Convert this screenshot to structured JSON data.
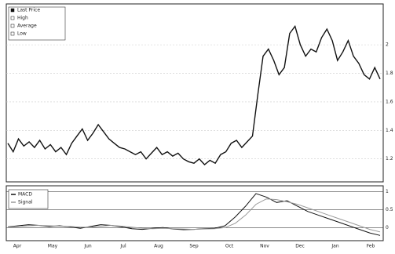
{
  "chart_data": [
    {
      "type": "line",
      "legend": "top-left",
      "grid": true,
      "legend_entries": [
        "Last Price",
        "High",
        "Average",
        "Low"
      ],
      "ylim": [
        1.05,
        2.27
      ],
      "yticks": [
        1.2,
        1.4,
        1.6,
        1.8,
        2.0
      ],
      "months": [
        "Apr",
        "May",
        "Jun",
        "Jul",
        "Aug",
        "Sep",
        "Oct",
        "Nov",
        "Dec",
        "Jan",
        "Feb"
      ],
      "series": [
        {
          "name": "Last Price",
          "color": "#111111",
          "values": [
            1.31,
            1.25,
            1.34,
            1.29,
            1.32,
            1.28,
            1.33,
            1.27,
            1.3,
            1.25,
            1.28,
            1.23,
            1.31,
            1.36,
            1.41,
            1.33,
            1.38,
            1.44,
            1.39,
            1.34,
            1.31,
            1.28,
            1.27,
            1.25,
            1.23,
            1.25,
            1.2,
            1.24,
            1.28,
            1.23,
            1.25,
            1.22,
            1.24,
            1.2,
            1.18,
            1.17,
            1.2,
            1.16,
            1.19,
            1.17,
            1.23,
            1.25,
            1.31,
            1.33,
            1.28,
            1.32,
            1.36,
            1.65,
            1.92,
            1.97,
            1.89,
            1.79,
            1.84,
            2.08,
            2.13,
            2.0,
            1.92,
            1.97,
            1.95,
            2.05,
            2.11,
            2.03,
            1.89,
            1.95,
            2.03,
            1.92,
            1.87,
            1.79,
            1.76,
            1.84,
            1.76
          ]
        }
      ]
    },
    {
      "type": "line",
      "legend": "top-left",
      "grid": true,
      "ylim": [
        -0.3,
        1.1
      ],
      "yticks": [
        0,
        0.5,
        1
      ],
      "series": [
        {
          "name": "MACD",
          "color": "#111111",
          "values": [
            0.02,
            0.05,
            0.08,
            0.06,
            0.03,
            0.05,
            0.02,
            -0.02,
            0.03,
            0.08,
            0.06,
            0.02,
            -0.03,
            -0.05,
            -0.02,
            0.0,
            -0.04,
            -0.06,
            -0.05,
            -0.03,
            -0.02,
            0.05,
            0.3,
            0.6,
            0.95,
            0.85,
            0.7,
            0.75,
            0.6,
            0.45,
            0.35,
            0.25,
            0.15,
            0.05,
            -0.05,
            -0.15,
            -0.22
          ]
        },
        {
          "name": "Signal",
          "color": "#999999",
          "values": [
            0.01,
            0.03,
            0.05,
            0.06,
            0.05,
            0.04,
            0.03,
            0.01,
            0.01,
            0.04,
            0.06,
            0.04,
            0.01,
            -0.02,
            -0.03,
            -0.02,
            -0.03,
            -0.04,
            -0.05,
            -0.04,
            -0.03,
            0.0,
            0.12,
            0.35,
            0.65,
            0.8,
            0.78,
            0.72,
            0.65,
            0.55,
            0.45,
            0.35,
            0.25,
            0.15,
            0.05,
            -0.05,
            -0.12
          ]
        }
      ]
    }
  ]
}
